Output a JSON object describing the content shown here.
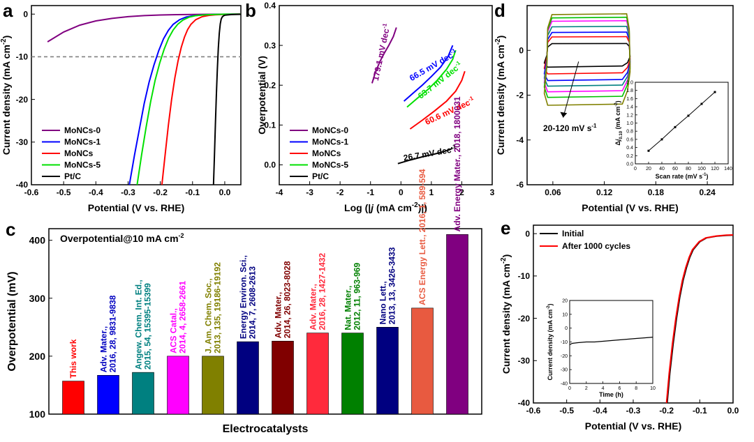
{
  "chart_data": [
    {
      "id": "a",
      "panel_label": "a",
      "type": "line",
      "xlabel": "Potential (V vs. RHE)",
      "ylabel": "Current density (mA cm",
      "ylabel_sup": "-2",
      "ylabel_end": ")",
      "xlim": [
        -0.6,
        0.05
      ],
      "ylim": [
        -40,
        2
      ],
      "xticks": [
        "-0.6",
        "-0.5",
        "-0.4",
        "-0.3",
        "-0.2",
        "-0.1",
        "0.0"
      ],
      "yticks": [
        "-40",
        "-30",
        "-20",
        "-10",
        "0"
      ],
      "reference_line": -10,
      "legend_placement": "bottom-left",
      "series": [
        {
          "name": "MoNCs-0",
          "color": "#800080",
          "x": [
            -0.55,
            -0.5,
            -0.45,
            -0.4,
            -0.35,
            -0.3,
            -0.25,
            -0.2,
            -0.15,
            -0.1,
            -0.05,
            0.0,
            0.05
          ],
          "y": [
            -6.5,
            -4.2,
            -2.6,
            -1.6,
            -1.0,
            -0.6,
            -0.35,
            -0.2,
            -0.12,
            -0.08,
            -0.05,
            -0.03,
            -0.02
          ]
        },
        {
          "name": "MoNCs-1",
          "color": "#0000ff",
          "x": [
            -0.296,
            -0.28,
            -0.265,
            -0.25,
            -0.235,
            -0.22,
            -0.205,
            -0.19,
            -0.175,
            -0.16,
            -0.14,
            -0.12,
            -0.1,
            -0.07,
            -0.04,
            0.0,
            0.05
          ],
          "y": [
            -40,
            -33,
            -27,
            -21,
            -16,
            -12,
            -8.6,
            -5.8,
            -3.8,
            -2.4,
            -1.3,
            -0.7,
            -0.4,
            -0.2,
            -0.1,
            -0.05,
            0.0
          ]
        },
        {
          "name": "MoNCs",
          "color": "#ff0000",
          "x": [
            -0.195,
            -0.185,
            -0.175,
            -0.165,
            -0.155,
            -0.145,
            -0.135,
            -0.125,
            -0.115,
            -0.105,
            -0.09,
            -0.07,
            -0.05,
            -0.03,
            0.0,
            0.05
          ],
          "y": [
            -40,
            -33,
            -26,
            -20,
            -15,
            -11,
            -7.8,
            -5.4,
            -3.6,
            -2.4,
            -1.3,
            -0.6,
            -0.3,
            -0.15,
            -0.06,
            0.0
          ]
        },
        {
          "name": "MoNCs-5",
          "color": "#00e000",
          "x": [
            -0.272,
            -0.258,
            -0.244,
            -0.23,
            -0.216,
            -0.202,
            -0.188,
            -0.174,
            -0.16,
            -0.146,
            -0.13,
            -0.11,
            -0.09,
            -0.06,
            -0.03,
            0.0,
            0.05
          ],
          "y": [
            -40,
            -33,
            -26.5,
            -20.5,
            -15.5,
            -11.5,
            -8.2,
            -5.6,
            -3.7,
            -2.4,
            -1.4,
            -0.7,
            -0.35,
            -0.15,
            -0.08,
            -0.03,
            0.0
          ]
        },
        {
          "name": "Pt/C",
          "color": "#000000",
          "x": [
            -0.035,
            -0.032,
            -0.029,
            -0.026,
            -0.023,
            -0.02,
            -0.017,
            -0.014,
            -0.011,
            -0.008,
            -0.004,
            0.0,
            0.02,
            0.05
          ],
          "y": [
            -40,
            -33,
            -26,
            -19,
            -13,
            -8,
            -4.5,
            -2.3,
            -1.2,
            -0.7,
            -0.4,
            -0.25,
            -0.1,
            -0.05
          ]
        }
      ]
    },
    {
      "id": "b",
      "panel_label": "b",
      "type": "line",
      "xlabel_pre": "Log (|",
      "xlabel_j": "j",
      "xlabel_mid": " (mA cm",
      "xlabel_sup": "-2",
      "xlabel_end": ")|)",
      "ylabel": "Overpotential (V)",
      "xlim": [
        -4,
        3
      ],
      "ylim": [
        -0.05,
        0.4
      ],
      "xticks": [
        "-4",
        "-3",
        "-2",
        "-1",
        "0",
        "1",
        "2",
        "3"
      ],
      "yticks": [
        "0.0",
        "0.1",
        "0.2",
        "0.3",
        "0.4"
      ],
      "legend_placement": "bottom-left",
      "series": [
        {
          "name": "MoNCs-0",
          "color": "#800080",
          "x": [
            -0.95,
            -0.85,
            -0.7,
            -0.55,
            -0.4,
            -0.25,
            -0.15
          ],
          "y": [
            0.205,
            0.23,
            0.258,
            0.28,
            0.3,
            0.322,
            0.345
          ]
        },
        {
          "name": "MoNCs-1",
          "color": "#0000ff",
          "x": [
            0.1,
            0.4,
            0.7,
            1.0,
            1.3,
            1.55,
            1.7
          ],
          "y": [
            0.16,
            0.18,
            0.2,
            0.222,
            0.245,
            0.272,
            0.3
          ]
        },
        {
          "name": "MoNCs",
          "color": "#ff0000",
          "x": [
            0.3,
            0.7,
            1.1,
            1.5,
            1.8,
            2.0,
            2.1
          ],
          "y": [
            0.09,
            0.112,
            0.135,
            0.16,
            0.185,
            0.212,
            0.235
          ]
        },
        {
          "name": "MoNCs-5",
          "color": "#00e000",
          "x": [
            0.2,
            0.55,
            0.9,
            1.2,
            1.5,
            1.7,
            1.8
          ],
          "y": [
            0.145,
            0.168,
            0.19,
            0.213,
            0.24,
            0.265,
            0.288
          ]
        },
        {
          "name": "Pt/C",
          "color": "#000000",
          "x": [
            -0.1,
            0.3,
            0.7,
            1.1,
            1.4,
            1.6,
            1.7
          ],
          "y": [
            0.003,
            0.012,
            0.02,
            0.027,
            0.033,
            0.038,
            0.042
          ]
        }
      ],
      "annotations": [
        {
          "text": "179.1 mV dec",
          "sup": "-1",
          "color": "#800080"
        },
        {
          "text": "66.5 mV dec",
          "sup": "-1",
          "color": "#0000ff"
        },
        {
          "text": "63.7 mV dec",
          "sup": "-1",
          "color": "#00e000"
        },
        {
          "text": "60.6 mV dec",
          "sup": "-1",
          "color": "#ff0000"
        },
        {
          "text": "26.7 mV dec",
          "sup": "-1",
          "color": "#000000"
        }
      ]
    },
    {
      "id": "c",
      "panel_label": "c",
      "type": "bar",
      "title": "Overpotential@10 mA cm",
      "title_sup": "-2",
      "xlabel": "Electrocatalysts",
      "ylabel": "Overpotential (mV)",
      "ylim": [
        100,
        420
      ],
      "yticks": [
        "100",
        "200",
        "300",
        "400"
      ],
      "bars": [
        {
          "value": 157,
          "color": "#ff0000",
          "label_color": "#ff0000",
          "lines": [
            "This work"
          ]
        },
        {
          "value": 167,
          "color": "#0000ff",
          "label_color": "#0000c0",
          "lines": [
            "Adv. Mater.,",
            "2016, 28, 9831-9838"
          ]
        },
        {
          "value": 172,
          "color": "#008080",
          "label_color": "#008080",
          "lines": [
            "Angew. Chem. Int. Ed.,",
            "2015, 54, 15395-15399"
          ]
        },
        {
          "value": 200,
          "color": "#ff00ff",
          "label_color": "#ff00ff",
          "lines": [
            "ACS Catal.,",
            "2014, 4, 2658-2661"
          ]
        },
        {
          "value": 200,
          "color": "#808000",
          "label_color": "#808000",
          "lines": [
            "J. Am. Chem. Soc.,",
            "2013, 135, 19186-19192"
          ]
        },
        {
          "value": 225,
          "color": "#000080",
          "label_color": "#000080",
          "lines": [
            "Energy Environ. Sci.,",
            "2014, 7, 2608-2613"
          ]
        },
        {
          "value": 226,
          "color": "#800000",
          "label_color": "#800000",
          "lines": [
            "Adv. Mater.,",
            "2014, 26, 8023-8028"
          ]
        },
        {
          "value": 240,
          "color": "#ff2a3c",
          "label_color": "#ff2a3c",
          "lines": [
            "Adv. Mater.,",
            "2016, 28, 1427-1432"
          ]
        },
        {
          "value": 240,
          "color": "#008000",
          "label_color": "#008000",
          "lines": [
            "Nat. Mater.,",
            "2012, 11, 963-969"
          ]
        },
        {
          "value": 250,
          "color": "#000080",
          "label_color": "#000080",
          "lines": [
            "Nano Lett.,",
            "2013, 13, 3426-3433"
          ]
        },
        {
          "value": 283,
          "color": "#e85a40",
          "label_color": "#e85a40",
          "lines": [
            "ACS Energy Lett., 2016, 1, 589-594"
          ]
        },
        {
          "value": 410,
          "color": "#800080",
          "label_color": "#800080",
          "lines": [
            "Adv. Energy Mater., 2018, 1800031"
          ]
        }
      ]
    },
    {
      "id": "d",
      "panel_label": "d",
      "type": "line",
      "xlabel": "Potential (V vs. RHE)",
      "ylabel": "Current density (mA cm",
      "ylabel_sup": "-2",
      "ylabel_end": ")",
      "xlim": [
        0.03,
        0.27
      ],
      "ylim": [
        -6,
        2
      ],
      "xticks": [
        "0.06",
        "0.12",
        "0.18",
        "0.24"
      ],
      "yticks": [
        "-6",
        "-4",
        "-2",
        "0"
      ],
      "annotation": "20-120 mV s",
      "annotation_sup": "-1",
      "cv_x_range": [
        0.05,
        0.15
      ],
      "cv_loops": [
        {
          "scan_rate": 20,
          "top": 0.3,
          "bottom": -0.7,
          "color": "#000000"
        },
        {
          "scan_rate": 40,
          "top": 0.6,
          "bottom": -1.0,
          "color": "#ff0000"
        },
        {
          "scan_rate": 60,
          "top": 0.8,
          "bottom": -1.3,
          "color": "#0000ff"
        },
        {
          "scan_rate": 80,
          "top": 1.05,
          "bottom": -1.55,
          "color": "#008080"
        },
        {
          "scan_rate": 100,
          "top": 1.3,
          "bottom": -1.8,
          "color": "#ff00ff"
        },
        {
          "scan_rate": 110,
          "top": 1.45,
          "bottom": -2.05,
          "color": "#00c000"
        },
        {
          "scan_rate": 120,
          "top": 1.6,
          "bottom": -2.4,
          "color": "#808000"
        }
      ],
      "inset": {
        "type": "scatter",
        "xlabel": "Scan rate (mV s",
        "xlabel_sup": "-1",
        "xlabel_end": ")",
        "ylabel_pre": "Δ",
        "ylabel_j": "j",
        "ylabel_sub": "0.10",
        "ylabel_mid": " (mA cm",
        "ylabel_sup": "-2",
        "ylabel_end": ")",
        "xlim": [
          0,
          140
        ],
        "ylim": [
          0,
          2.0
        ],
        "xticks": [
          "0",
          "20",
          "40",
          "60",
          "80",
          "100",
          "120",
          "140"
        ],
        "yticks": [
          "0.0",
          "0.2",
          "0.4",
          "0.6",
          "0.8",
          "1.0",
          "1.2",
          "1.4",
          "1.6",
          "1.8",
          "2.0"
        ],
        "x": [
          20,
          40,
          60,
          80,
          100,
          120
        ],
        "y": [
          0.32,
          0.6,
          0.9,
          1.18,
          1.47,
          1.76
        ]
      }
    },
    {
      "id": "e",
      "panel_label": "e",
      "type": "line",
      "xlabel": "Potential (V vs. RHE)",
      "ylabel": "Current density (mA cm",
      "ylabel_sup": "-2",
      "ylabel_end": ")",
      "xlim": [
        -0.6,
        0.0
      ],
      "ylim": [
        -40,
        2
      ],
      "xticks": [
        "-0.6",
        "-0.5",
        "-0.4",
        "-0.3",
        "-0.2",
        "-0.1",
        "0.0"
      ],
      "yticks": [
        "-40",
        "-30",
        "-20",
        "-10",
        "0"
      ],
      "legend_placement": "top-left",
      "series": [
        {
          "name": "Initial",
          "color": "#000000",
          "x": [
            -0.198,
            -0.19,
            -0.18,
            -0.17,
            -0.16,
            -0.15,
            -0.14,
            -0.13,
            -0.12,
            -0.1,
            -0.08,
            -0.05,
            -0.02,
            0.0
          ],
          "y": [
            -40,
            -33,
            -26,
            -20,
            -15,
            -11,
            -8,
            -5.6,
            -3.8,
            -1.9,
            -1.0,
            -0.6,
            -0.4,
            -0.35
          ]
        },
        {
          "name": "After 1000 cycles",
          "color": "#ff0000",
          "x": [
            -0.2,
            -0.192,
            -0.182,
            -0.172,
            -0.162,
            -0.152,
            -0.142,
            -0.132,
            -0.122,
            -0.102,
            -0.082,
            -0.05,
            -0.02,
            0.0
          ],
          "y": [
            -40,
            -33,
            -26,
            -20,
            -15,
            -11,
            -8,
            -5.6,
            -3.8,
            -1.9,
            -1.0,
            -0.55,
            -0.35,
            -0.3
          ]
        }
      ],
      "inset": {
        "type": "line",
        "xlabel": "Time (h)",
        "ylabel": "Current density (mA cm",
        "ylabel_sup": "-2",
        "ylabel_end": ")",
        "xlim": [
          0,
          10
        ],
        "ylim": [
          -40,
          20
        ],
        "xticks": [
          "0",
          "2",
          "4",
          "6",
          "8",
          "10"
        ],
        "yticks": [
          "-40",
          "-30",
          "-20",
          "-10",
          "0",
          "10",
          "20"
        ],
        "x": [
          0,
          0.3,
          1,
          2,
          3,
          4,
          5,
          6,
          7,
          8,
          9,
          10
        ],
        "y": [
          -12,
          -11,
          -10.5,
          -10,
          -10,
          -9.5,
          -9,
          -8.5,
          -8,
          -7.5,
          -7,
          -6.5
        ]
      }
    }
  ]
}
